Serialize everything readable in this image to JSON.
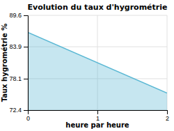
{
  "chart_data": {
    "type": "area",
    "title": "Evolution du taux d'hygrométrie",
    "xlabel": "heure par heure",
    "ylabel": "Taux hygrométrie %",
    "x": [
      0,
      2
    ],
    "values": [
      86.5,
      75.5
    ],
    "color": "#5bb8d4",
    "xlim": [
      0,
      2
    ],
    "ylim": [
      72.4,
      89.6
    ],
    "xticks": [
      0,
      1,
      2
    ],
    "yticks": [
      72.4,
      78.1,
      83.9,
      89.6
    ],
    "grid": true
  }
}
